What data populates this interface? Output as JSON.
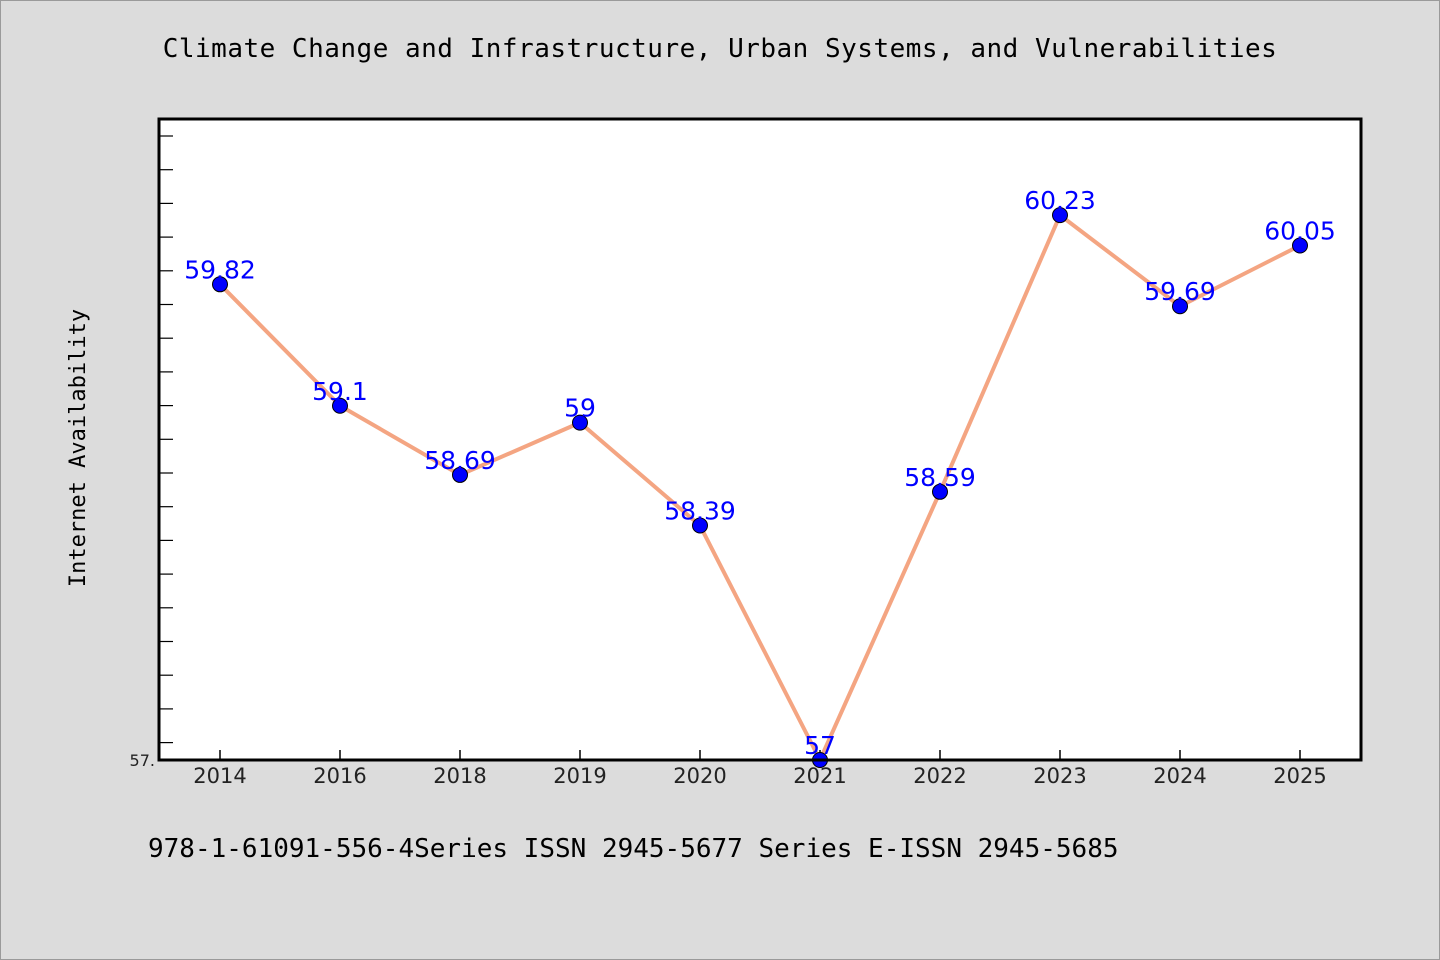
{
  "chart_data": {
    "type": "line",
    "title": "Climate Change and Infrastructure, Urban Systems, and Vulnerabilities",
    "xlabel": "",
    "ylabel": "Internet Availability",
    "categories": [
      "2014",
      "2016",
      "2018",
      "2019",
      "2020",
      "2021",
      "2022",
      "2023",
      "2024",
      "2025"
    ],
    "series": [
      {
        "values": [
          59.82,
          59.1,
          58.69,
          59,
          58.39,
          57,
          58.59,
          60.23,
          59.69,
          60.05
        ],
        "labels": [
          "59.82",
          "59.1",
          "58.69",
          "59",
          "58.39",
          "57",
          "58.59",
          "60.23",
          "59.69",
          "60.05"
        ]
      }
    ],
    "ylim": [
      57,
      60.8
    ],
    "y_tick_labels": [
      "57."
    ],
    "grid": false,
    "legend": "none",
    "colors": {
      "line": "#f4a582",
      "marker": "#0000ff",
      "data_label": "#0000ff",
      "background": "#dcdcdc",
      "plot_area": "#ffffff"
    }
  },
  "footer": {
    "text": "978-1-61091-556-4Series ISSN 2945-5677 Series E-ISSN 2945-5685"
  }
}
